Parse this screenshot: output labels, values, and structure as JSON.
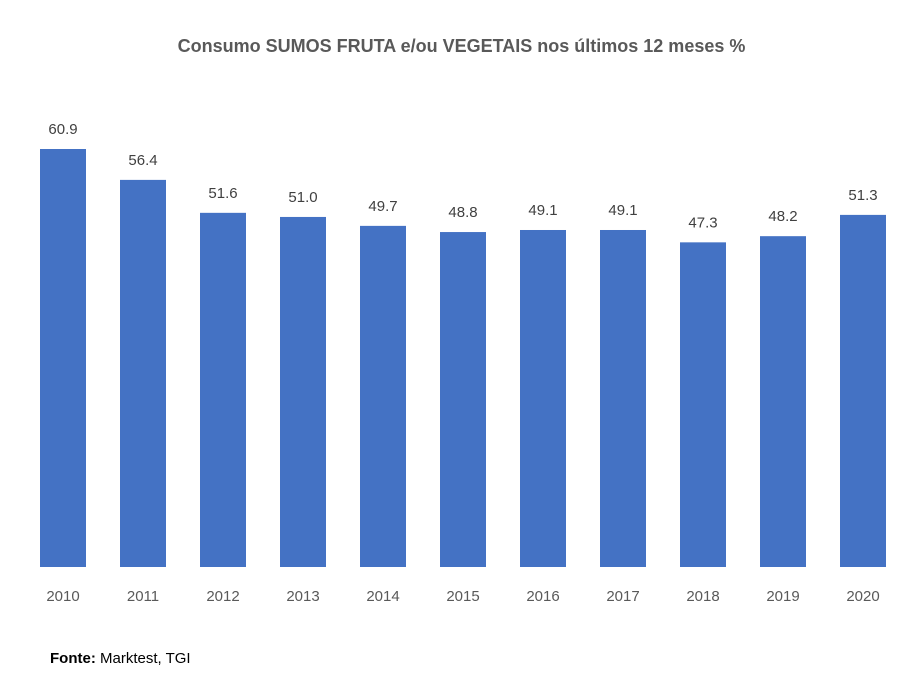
{
  "chart_data": {
    "type": "bar",
    "title": "Consumo SUMOS FRUTA e/ou VEGETAIS nos últimos 12 meses %",
    "categories": [
      "2010",
      "2011",
      "2012",
      "2013",
      "2014",
      "2015",
      "2016",
      "2017",
      "2018",
      "2019",
      "2020"
    ],
    "values": [
      60.9,
      56.4,
      51.6,
      51.0,
      49.7,
      48.8,
      49.1,
      49.1,
      47.3,
      48.2,
      51.3
    ],
    "value_labels": [
      "60.9",
      "56.4",
      "51.6",
      "51.0",
      "49.7",
      "48.8",
      "49.1",
      "49.1",
      "47.3",
      "48.2",
      "51.3"
    ],
    "xlabel": "",
    "ylabel": "",
    "ylim": [
      0,
      60.9
    ],
    "grid": false,
    "bar_color": "#4472C4"
  },
  "source": {
    "label": "Fonte:",
    "text": " Marktest, TGI"
  }
}
